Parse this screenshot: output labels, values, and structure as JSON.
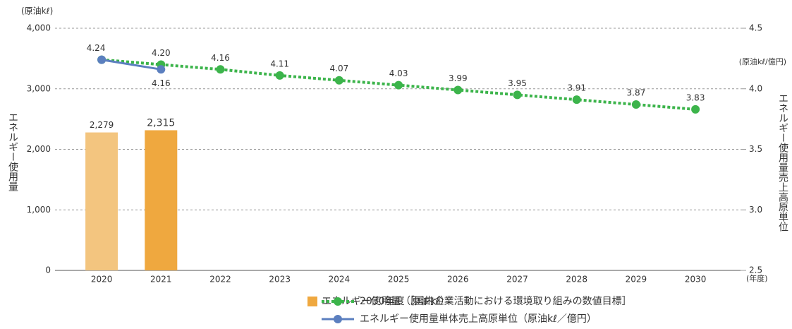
{
  "chart_data": {
    "type": "bar",
    "y_unit": "(原油kℓ)",
    "y2_unit": "(原油kℓ/億円)",
    "x_unit": "(年度)",
    "ylabel": "エネルギー使用量",
    "y2label": "エネルギー使用量売上高原単位",
    "categories": [
      "2020",
      "2021",
      "2022",
      "2023",
      "2024",
      "2025",
      "2026",
      "2027",
      "2028",
      "2029",
      "2030"
    ],
    "series": [
      {
        "name": "エネルギー使用量（原油kℓ）",
        "type": "bar",
        "color": "#efa83f",
        "colors": [
          "#f3c57f",
          "#efa83f"
        ],
        "values": [
          2279,
          2315,
          null,
          null,
          null,
          null,
          null,
          null,
          null,
          null,
          null
        ],
        "value_labels": [
          "2,279",
          "2,315",
          null,
          null,
          null,
          null,
          null,
          null,
          null,
          null,
          null
        ]
      },
      {
        "name": "2030年度［国内企業活動における環境取り組みの数値目標］",
        "type": "line",
        "axis": "y2",
        "color": "#3cb44b",
        "dashed": true,
        "values": [
          4.24,
          4.2,
          4.16,
          4.11,
          4.07,
          4.03,
          3.99,
          3.95,
          3.91,
          3.87,
          3.83
        ],
        "value_labels": [
          null,
          "4.20",
          "4.16",
          "4.11",
          "4.07",
          "4.03",
          "3.99",
          "3.95",
          "3.91",
          "3.87",
          "3.83"
        ]
      },
      {
        "name": "エネルギー使用量単体売上高原単位（原油kℓ／億円）",
        "type": "line",
        "axis": "y2",
        "color": "#5b7fbf",
        "dashed": false,
        "values": [
          4.24,
          4.16,
          null,
          null,
          null,
          null,
          null,
          null,
          null,
          null,
          null
        ],
        "value_labels": [
          "4.24",
          "4.16",
          null,
          null,
          null,
          null,
          null,
          null,
          null,
          null,
          null
        ]
      }
    ],
    "ylim": [
      0,
      4000
    ],
    "yticks": [
      0,
      {
        "value": 1000,
        "label": "1,000"
      },
      {
        "value": 2000,
        "label": "2,000"
      },
      {
        "value": 3000,
        "label": "3,000"
      },
      {
        "value": 4000,
        "label": "4,000"
      }
    ],
    "y2lim": [
      2.5,
      4.5
    ],
    "y2ticks": [
      2.5,
      {
        "value": 3,
        "label": "3.0"
      },
      3.5,
      {
        "value": 4,
        "label": "4.0"
      },
      4.5
    ],
    "grid": true
  }
}
